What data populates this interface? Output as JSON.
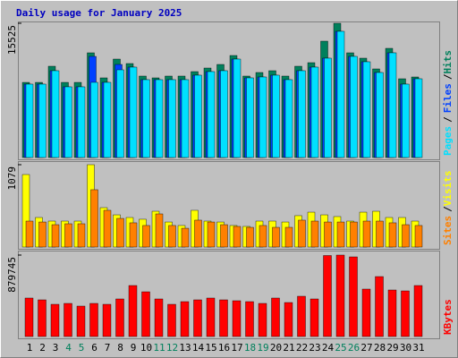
{
  "chart_data": [
    {
      "type": "bar",
      "title": "Daily usage for January 2025",
      "ylim": [
        0,
        15525
      ],
      "yticks": [
        15525
      ],
      "separator": "/",
      "series": [
        {
          "name": "Hits",
          "color": "#00805c",
          "values": [
            8690,
            8690,
            10557,
            8690,
            8690,
            12110,
            9212,
            11385,
            10868,
            9419,
            9212,
            9419,
            9419,
            9936,
            10350,
            10764,
            11799,
            9419,
            9833,
            10040,
            9419,
            10557,
            10971,
            13455,
            15525,
            12110,
            11489,
            10247,
            12627,
            9108,
            9315
          ]
        },
        {
          "name": "Files",
          "color": "#0040ff",
          "values": [
            8487,
            8487,
            10040,
            8177,
            8177,
            11696,
            8694,
            10764,
            10454,
            9005,
            9005,
            9005,
            9005,
            9522,
            9936,
            10040,
            11385,
            9212,
            9315,
            9522,
            9005,
            10040,
            10454,
            11489,
            14594,
            11696,
            11075,
            9833,
            12110,
            8487,
            9108
          ]
        },
        {
          "name": "Pages",
          "color": "#00e0ff",
          "values": [
            8487,
            8487,
            10040,
            8177,
            8177,
            8694,
            8694,
            10143,
            10454,
            9005,
            9005,
            9005,
            9005,
            9522,
            9936,
            10040,
            11385,
            9212,
            9315,
            9522,
            9005,
            10040,
            10454,
            11489,
            14594,
            11696,
            11075,
            9833,
            12110,
            8487,
            9108
          ]
        }
      ]
    },
    {
      "type": "bar",
      "ylim": [
        0,
        1079
      ],
      "yticks": [
        1079
      ],
      "separator": "/",
      "series": [
        {
          "name": "Visits",
          "color": "#ffff00",
          "values": [
            950,
            387,
            340,
            340,
            340,
            1079,
            516,
            422,
            387,
            364,
            469,
            328,
            282,
            481,
            340,
            328,
            282,
            270,
            340,
            340,
            328,
            411,
            457,
            422,
            399,
            340,
            457,
            469,
            387,
            387,
            340
          ]
        },
        {
          "name": "Sites",
          "color": "#ff8000",
          "values": [
            340,
            328,
            293,
            305,
            305,
            751,
            481,
            375,
            317,
            282,
            434,
            282,
            246,
            352,
            328,
            293,
            270,
            258,
            282,
            258,
            258,
            352,
            340,
            328,
            328,
            328,
            340,
            340,
            317,
            293,
            282
          ]
        }
      ]
    },
    {
      "type": "bar",
      "ylim": [
        0,
        879745
      ],
      "yticks": [
        879745
      ],
      "categories": [
        "1",
        "2",
        "3",
        "4",
        "5",
        "6",
        "7",
        "8",
        "9",
        "10",
        "11",
        "12",
        "13",
        "14",
        "15",
        "16",
        "17",
        "18",
        "19",
        "20",
        "21",
        "22",
        "23",
        "24",
        "25",
        "26",
        "27",
        "28",
        "29",
        "30",
        "31"
      ],
      "label_colors": [
        "#000",
        "#000",
        "#000",
        "#00805c",
        "#00805c",
        "#000",
        "#000",
        "#000",
        "#000",
        "#000",
        "#00805c",
        "#00805c",
        "#000",
        "#000",
        "#000",
        "#000",
        "#000",
        "#00805c",
        "#00805c",
        "#000",
        "#000",
        "#000",
        "#000",
        "#000",
        "#00805c",
        "#00805c",
        "#000",
        "#000",
        "#000",
        "#000",
        "#000"
      ],
      "series": [
        {
          "name": "KBytes",
          "color": "#ff0000",
          "values": [
            415700,
            396300,
            348000,
            357700,
            328700,
            357700,
            348000,
            406000,
            551000,
            483300,
            406000,
            348000,
            377000,
            396300,
            415700,
            396300,
            386700,
            377000,
            357700,
            415700,
            367300,
            435000,
            406000,
            875000,
            879745,
            860400,
            512400,
            647700,
            502700,
            493000,
            551000
          ]
        }
      ]
    }
  ]
}
